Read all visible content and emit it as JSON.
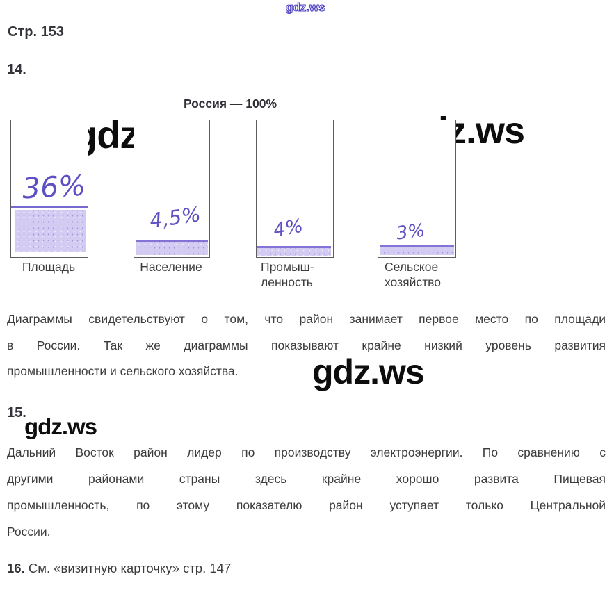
{
  "watermark": {
    "text": "gdz.ws",
    "brand_color_blue": "#4a3fc0",
    "brand_color_black": "#0d0d0d"
  },
  "header": {
    "page_label": "Стр. 153",
    "task14_number": "14.",
    "task15_number": "15.",
    "task16_number": "16."
  },
  "chart_data": {
    "type": "bar",
    "title": "Россия — 100%",
    "categories": [
      "Площадь",
      "Население",
      "Промышленность",
      "Сельское хозяйство"
    ],
    "values": [
      36,
      4.5,
      4,
      3
    ],
    "value_labels": [
      "36%",
      "4,5%",
      "4%",
      "3%"
    ],
    "unit": "%",
    "ylim": [
      0,
      100
    ],
    "legend_position": "none",
    "grid": false,
    "ink_color": "#5c50c4",
    "fill_color": "#b0a2e3",
    "category_lines": [
      [
        "Площадь"
      ],
      [
        "Население"
      ],
      [
        "Промыш-",
        "ленность"
      ],
      [
        "Сельское",
        "хозяйство"
      ]
    ]
  },
  "answer14": {
    "lines": [
      "Диаграммы свидетельствуют о том, что район занимает первое место по площади",
      "в России. Так же диаграммы показывают крайне низкий уровень развития",
      "промышленности и сельского хозяйства."
    ]
  },
  "answer15": {
    "lines": [
      "Дальний Восток район лидер по производству электроэнергии. По сравнению с",
      "другими районами страны здесь крайне хорошо развита Пищевая",
      "промышленность, по этому показателю район уступает только Центральной",
      "России."
    ]
  },
  "answer16": {
    "text": "См. «визитную карточку» стр. 147"
  }
}
